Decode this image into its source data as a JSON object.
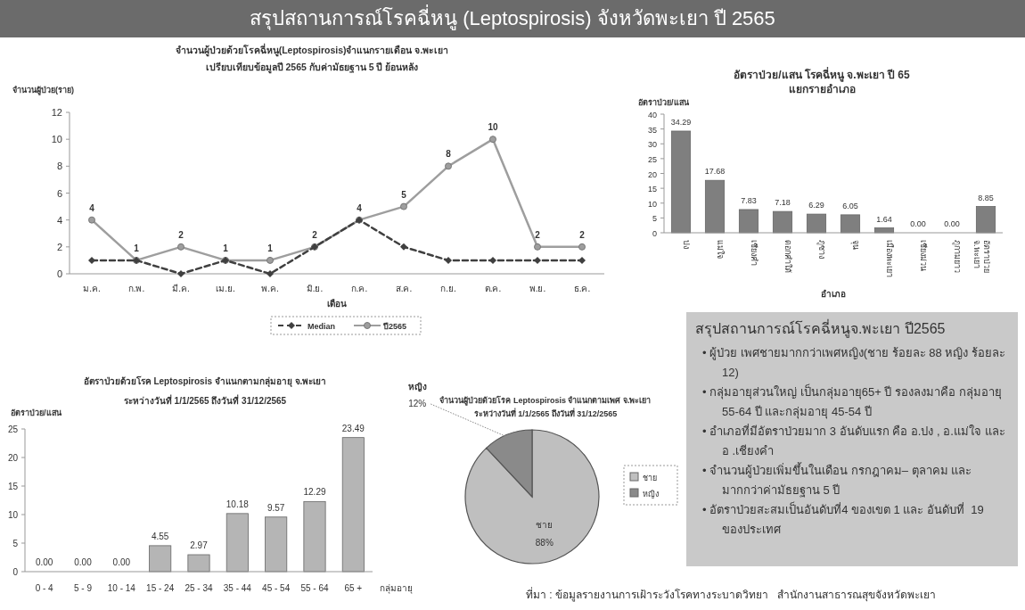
{
  "chart_data": [
    {
      "type": "other",
      "title": "สรุปสถานการณ์โรคฉี่หนู (Leptospirosis) จังหวัดพะเยา ปี 2565",
      "annotations": [
        "ที่มา : ข้อมูลรายงานการเฝ้าระวังโรคทางระบาดวิทยา   สำนักงานสาธารณสุขจังหวัดพะเยา"
      ]
    },
    {
      "type": "line",
      "title": "จำนวนผู้ป่วยด้วยโรคฉี่หนู(Leptospirosis)จำแนกรายเดือน  จ.พะเยา",
      "subtitle": "เปรียบเทียบข้อมูลปี 2565 กับค่ามัธยฐาน 5 ปี ย้อนหลัง",
      "ylabel": "จำนวนผู้ป่วย(ราย)",
      "xlabel": "เดือน",
      "categories": [
        "ม.ค.",
        "ก.พ.",
        "มี.ค.",
        "เม.ย.",
        "พ.ค.",
        "มิ.ย.",
        "ก.ค.",
        "ส.ค.",
        "ก.ย.",
        "ต.ค.",
        "พ.ย.",
        "ธ.ค."
      ],
      "series": [
        {
          "name": "Median",
          "color": "#404040",
          "line_style": "dashed",
          "marker": "diamond",
          "values": [
            1,
            1,
            0,
            1,
            0,
            2,
            4,
            2,
            1,
            1,
            1,
            1
          ]
        },
        {
          "name": "ปี2565",
          "color": "#9e9e9e",
          "line_style": "solid",
          "marker": "circle",
          "values": [
            4,
            1,
            2,
            1,
            1,
            2,
            4,
            5,
            8,
            10,
            2,
            2
          ],
          "value_labels": [
            "4",
            "1",
            "2",
            "1",
            "1",
            "2",
            "4",
            "5",
            "8",
            "10",
            "2",
            "2"
          ]
        }
      ],
      "ylim": [
        0,
        12
      ],
      "yticks": [
        0,
        2,
        4,
        6,
        8,
        10,
        12
      ],
      "grid": false,
      "legend": "bottom"
    },
    {
      "type": "bar",
      "title": "อัตราป่วย/แสน โรคฉี่หนู จ.พะเยา ปี 65",
      "subtitle": "แยกรายอำเภอ",
      "ylabel": "อัตราป่วย/แสน",
      "xlabel": "อำเภอ",
      "categories": [
        "ปง",
        "แม่ใจ",
        "เชียงคำ",
        "ดอกคำใต้",
        "ภูซาง",
        "จุน",
        "เมืองพะเยา",
        "เชียงม่วน",
        "ภูกามยาว",
        "อัตราป่วย จ.พะเยา"
      ],
      "values": [
        34.29,
        17.68,
        7.83,
        7.18,
        6.29,
        6.05,
        1.64,
        0,
        0,
        8.85
      ],
      "value_labels": [
        "34.29",
        "17.68",
        "7.83",
        "7.18",
        "6.29",
        "6.05",
        "1.64",
        "0.00",
        "0.00",
        "8.85"
      ],
      "color": "#7f7f7f",
      "ylim": [
        0,
        40
      ],
      "yticks": [
        0,
        5,
        10,
        15,
        20,
        25,
        30,
        35,
        40
      ],
      "grid": false
    },
    {
      "type": "bar",
      "title": "อัตราป่วยด้วยโรค Leptospirosis  จำแนกตามกลุ่มอายุ   จ.พะเยา",
      "subtitle": "ระหว่างวันที่  1/1/2565  ถึงวันที่  31/12/2565",
      "ylabel": "อัตราป่วย/แสน",
      "xlabel": "กลุ่มอายุ",
      "categories": [
        "0 - 4",
        "5 - 9",
        "10 - 14",
        "15 - 24",
        "25 - 34",
        "35 - 44",
        "45 - 54",
        "55 - 64",
        "65 +"
      ],
      "values": [
        0,
        0,
        0,
        4.55,
        2.97,
        10.18,
        9.57,
        12.29,
        23.49
      ],
      "value_labels": [
        "0.00",
        "0.00",
        "0.00",
        "4.55",
        "2.97",
        "10.18",
        "9.57",
        "12.29",
        "23.49"
      ],
      "color": "#b5b5b5",
      "ylim": [
        0,
        25
      ],
      "yticks": [
        0,
        5,
        10,
        15,
        20,
        25
      ],
      "grid": false
    },
    {
      "type": "pie",
      "title": "จำนวนผู้ป่วยด้วยโรค Leptospirosis  จำแนกตามเพศ   จ.พะเยา",
      "subtitle": "ระหว่างวันที่  1/1/2565 ถึงวันที่  31/12/2565",
      "categories": [
        "ชาย",
        "หญิง"
      ],
      "values": [
        88,
        12
      ],
      "value_labels": [
        "88%",
        "12%"
      ],
      "colors": [
        "#bfbfbf",
        "#8a8a8a"
      ],
      "legend": "right"
    },
    {
      "type": "other",
      "title": "สรุปสถานการณ์โรคฉี่หนูจ.พะเยา ปี2565",
      "annotations": [
        "• ผู้ป่วย เพศชายมากกว่าเพศหญิง(ชาย ร้อยละ 88 หญิง ร้อยละ 12)",
        "• กลุ่มอายุส่วนใหญ่ เป็นกลุ่มอายุ65+ ปี รองลงมาคือ กลุ่มอายุ 55-64 ปี และกลุ่มอายุ 45-54 ปี",
        "• อำเภอที่มีอัตราป่วยมาก 3 อันดับแรก คือ อ.ปง , อ.แม่ใจ และ อ .เชียงคำ",
        "• จำนวนผู้ป่วยเพิ่มขึ้นในเดือน กรกฎาคม– ตุลาคม และ มากกว่าค่ามัธยฐาน 5 ปี",
        "• อัตราป่วยสะสมเป็นอันดับที่4 ของเขต 1 และ อันดับที่  19  ของประเทศ"
      ]
    }
  ]
}
